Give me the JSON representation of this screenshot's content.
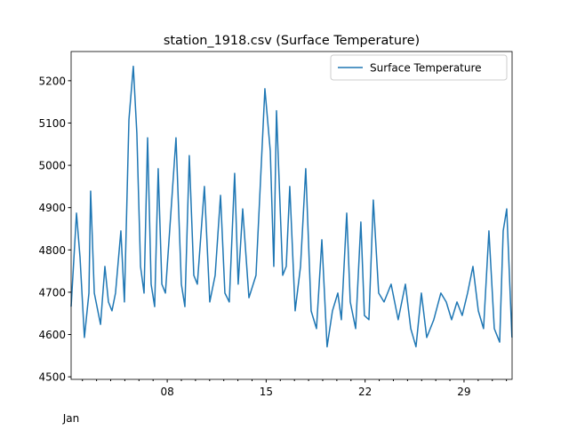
{
  "chart_data": {
    "type": "line",
    "title": "station_1918.csv (Surface Temperature)",
    "x_label": "Jan",
    "x": [
      1.2,
      1.58,
      1.83,
      2.14,
      2.46,
      2.58,
      2.84,
      3.28,
      3.59,
      3.84,
      4.09,
      4.34,
      4.72,
      4.97,
      5.29,
      5.6,
      5.85,
      6.11,
      6.36,
      6.61,
      6.86,
      7.11,
      7.36,
      7.62,
      7.87,
      8.62,
      9.0,
      9.25,
      9.56,
      9.88,
      10.13,
      10.63,
      11.01,
      11.39,
      11.77,
      12.08,
      12.39,
      12.77,
      13.02,
      13.34,
      13.78,
      14.28,
      14.91,
      15.29,
      15.54,
      15.73,
      16.17,
      16.42,
      16.67,
      17.05,
      17.43,
      17.8,
      18.18,
      18.56,
      18.94,
      19.31,
      19.69,
      20.07,
      20.32,
      20.7,
      20.95,
      21.33,
      21.7,
      21.95,
      22.27,
      22.58,
      22.96,
      23.34,
      23.84,
      24.34,
      24.85,
      25.23,
      25.6,
      25.98,
      26.36,
      26.86,
      27.36,
      27.74,
      28.12,
      28.5,
      28.87,
      29.25,
      29.63,
      30.01,
      30.38,
      30.76,
      31.14,
      31.52,
      31.77,
      32.02,
      32.39
    ],
    "series": [
      {
        "name": "Surface Temperature",
        "color": "#1f77b4",
        "values": [
          4666,
          4887,
          4782,
          4593,
          4698,
          4939,
          4698,
          4624,
          4761,
          4677,
          4656,
          4698,
          4845,
          4677,
          5108,
          5234,
          5076,
          4761,
          4698,
          5065,
          4719,
          4666,
          4992,
          4719,
          4698,
          5065,
          4719,
          4666,
          5023,
          4740,
          4719,
          4950,
          4677,
          4740,
          4929,
          4698,
          4677,
          4981,
          4719,
          4897,
          4687,
          4740,
          5181,
          5034,
          4761,
          5129,
          4740,
          4761,
          4950,
          4656,
          4761,
          4992,
          4656,
          4614,
          4824,
          4571,
          4656,
          4698,
          4635,
          4887,
          4677,
          4614,
          4866,
          4645,
          4635,
          4918,
          4698,
          4677,
          4719,
          4635,
          4719,
          4614,
          4571,
          4698,
          4593,
          4635,
          4698,
          4677,
          4635,
          4677,
          4645,
          4698,
          4761,
          4656,
          4614,
          4845,
          4614,
          4582,
          4845,
          4897,
          4593
        ]
      }
    ],
    "xlim": [
      1.2,
      32.4
    ],
    "xticks": [
      {
        "value": 8,
        "label": "08"
      },
      15,
      22,
      29
    ],
    "xminorticks": [
      2,
      3,
      4,
      5,
      6,
      7,
      9,
      10,
      11,
      12,
      13,
      14,
      16,
      17,
      18,
      19,
      20,
      21,
      23,
      24,
      25,
      26,
      27,
      28,
      30,
      31,
      32
    ],
    "ylim": [
      4494,
      5269
    ],
    "yticks": [
      4500,
      4600,
      4700,
      4800,
      4900,
      5000,
      5100,
      5200
    ],
    "legend": "upper right"
  }
}
